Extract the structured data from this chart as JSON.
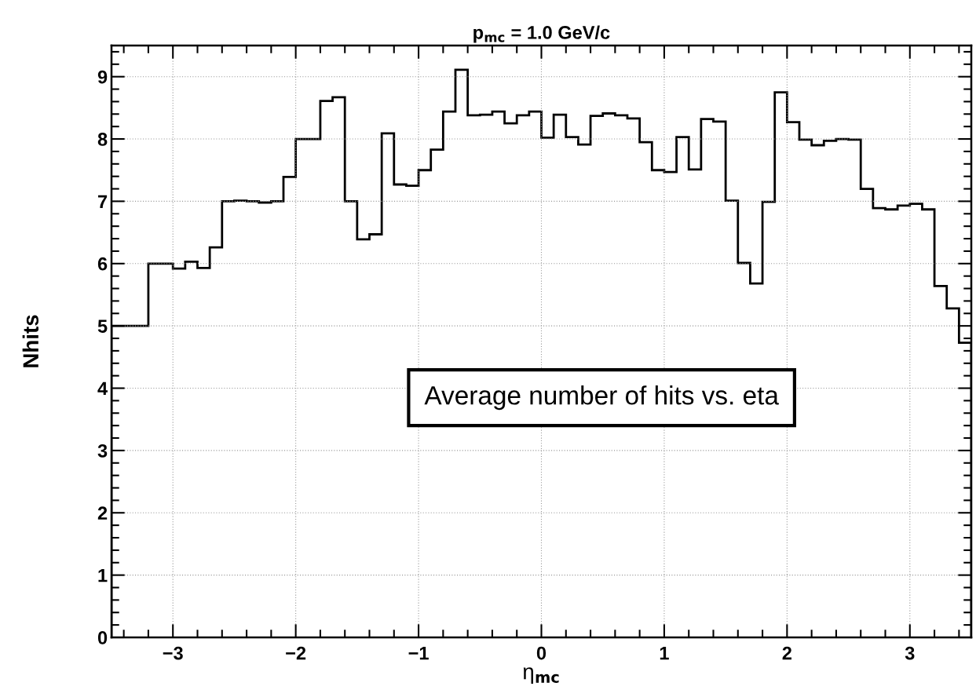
{
  "chart_data": {
    "type": "histogram",
    "title": "p$_{mc}$ = 1.0 GeV/c",
    "xlabel": "η$_{mc}$",
    "ylabel": "Nhits",
    "bins": [
      -3.5,
      -3.4,
      -3.3,
      -3.2,
      -3.1,
      -3.0,
      -2.9,
      -2.8,
      -2.7,
      -2.6,
      -2.5,
      -2.4,
      -2.3,
      -2.2,
      -2.1,
      -2.0,
      -1.9,
      -1.8,
      -1.7,
      -1.6,
      -1.5,
      -1.4,
      -1.3,
      -1.2,
      -1.1,
      -1.0,
      -0.9,
      -0.8,
      -0.7,
      -0.6,
      -0.5,
      -0.4,
      -0.3,
      -0.2,
      -0.1,
      0.0,
      0.1,
      0.2,
      0.3,
      0.4,
      0.5,
      0.6,
      0.7,
      0.8,
      0.9,
      1.0,
      1.1,
      1.2,
      1.3,
      1.4,
      1.5,
      1.6,
      1.7,
      1.8,
      1.9,
      2.0,
      2.1,
      2.2,
      2.3,
      2.4,
      2.5,
      2.6,
      2.7,
      2.8,
      2.9,
      3.0,
      3.1,
      3.2,
      3.3,
      3.4,
      3.5
    ],
    "values": [
      5.0,
      5.0,
      5.0,
      6.0,
      6.0,
      5.92,
      6.03,
      5.93,
      6.26,
      7.0,
      7.01,
      7.0,
      6.98,
      7.0,
      7.39,
      8.0,
      8.0,
      8.61,
      8.67,
      7.0,
      6.39,
      6.47,
      8.09,
      7.27,
      7.25,
      7.5,
      7.83,
      8.44,
      9.11,
      8.38,
      8.39,
      8.44,
      8.25,
      8.38,
      8.44,
      8.02,
      8.39,
      8.03,
      7.91,
      8.37,
      8.41,
      8.38,
      8.33,
      7.95,
      7.5,
      7.47,
      8.03,
      7.51,
      8.32,
      8.28,
      7.01,
      6.01,
      5.68,
      6.99,
      8.75,
      8.27,
      7.99,
      7.9,
      7.97,
      8.0,
      7.99,
      7.2,
      6.89,
      6.87,
      6.93,
      6.96,
      6.87,
      5.64,
      5.28,
      4.73
    ],
    "color": "#000000",
    "xlim": [
      -3.5,
      3.5
    ],
    "xticks": [
      {
        "value": -3,
        "label": "−3"
      },
      {
        "value": -2,
        "label": "−2"
      },
      {
        "value": -1,
        "label": "−1"
      },
      0,
      1,
      2,
      3
    ],
    "ylim": [
      0,
      9.5
    ],
    "yticks": [
      0,
      1,
      2,
      3,
      4,
      5,
      6,
      7,
      8,
      9
    ],
    "grid": true,
    "annotations": [
      "Average number of hits vs. eta"
    ]
  }
}
